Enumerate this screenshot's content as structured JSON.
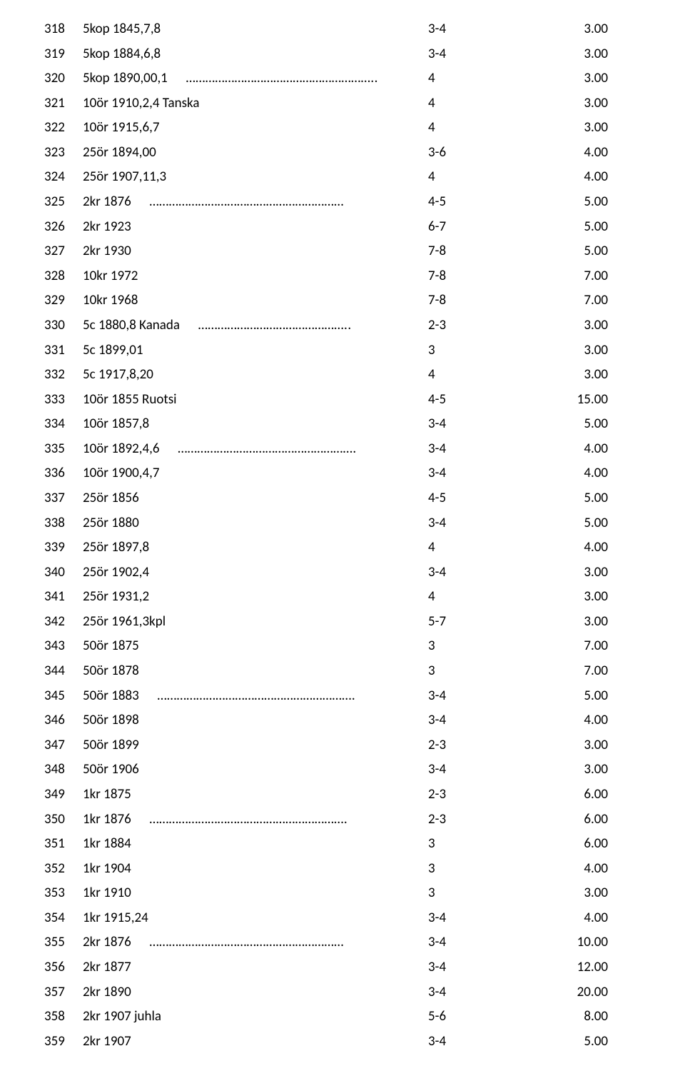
{
  "rows": [
    {
      "num": "318",
      "desc": "5kop 1845,7,8",
      "dots": "",
      "grade": "3-4",
      "price": "3.00"
    },
    {
      "num": "319",
      "desc": "5kop 1884,6,8",
      "dots": "",
      "grade": "3-4",
      "price": "3.00"
    },
    {
      "num": "320",
      "desc": "5kop 1890,00,1",
      "dots": "…………………………………………………..",
      "grade": "4",
      "price": "3.00"
    },
    {
      "num": "321",
      "desc": "10ör 1910,2,4 Tanska",
      "dots": "",
      "grade": "4",
      "price": "3.00"
    },
    {
      "num": "322",
      "desc": "10ör 1915,6,7",
      "dots": "",
      "grade": "4",
      "price": "3.00"
    },
    {
      "num": "323",
      "desc": "25ör 1894,00",
      "dots": "",
      "grade": "3-6",
      "price": "4.00"
    },
    {
      "num": "324",
      "desc": "25ör 1907,11,3",
      "dots": "",
      "grade": "4",
      "price": "4.00"
    },
    {
      "num": "325",
      "desc": "2kr 1876",
      "dots": "……………………………………………………",
      "grade": "4-5",
      "price": "5.00"
    },
    {
      "num": "326",
      "desc": "2kr 1923",
      "dots": "",
      "grade": "6-7",
      "price": "5.00"
    },
    {
      "num": "327",
      "desc": "2kr 1930",
      "dots": "",
      "grade": "7-8",
      "price": "5.00"
    },
    {
      "num": "328",
      "desc": "10kr 1972",
      "dots": "",
      "grade": "7-8",
      "price": "7.00"
    },
    {
      "num": "329",
      "desc": "10kr 1968",
      "dots": "",
      "grade": "7-8",
      "price": "7.00"
    },
    {
      "num": "330",
      "desc": "5c 1880,8 Kanada",
      "dots": "………………………………………..",
      "grade": "2-3",
      "price": "3.00"
    },
    {
      "num": "331",
      "desc": "5c 1899,01",
      "dots": "",
      "grade": "3",
      "price": "3.00"
    },
    {
      "num": "332",
      "desc": "5c 1917,8,20",
      "dots": "",
      "grade": "4",
      "price": "3.00"
    },
    {
      "num": "333",
      "desc": "10ör 1855      Ruotsi",
      "dots": "",
      "grade": "4-5",
      "price": "15.00"
    },
    {
      "num": "334",
      "desc": "10ör 1857,8",
      "dots": "",
      "grade": "3-4",
      "price": "5.00"
    },
    {
      "num": "335",
      "desc": "10ör 1892,4,6",
      "dots": "……………………………………………….",
      "grade": "3-4",
      "price": "4.00"
    },
    {
      "num": "336",
      "desc": "10ör 1900,4,7",
      "dots": "",
      "grade": "3-4",
      "price": "4.00"
    },
    {
      "num": "337",
      "desc": "25ör 1856",
      "dots": "",
      "grade": "4-5",
      "price": "5.00"
    },
    {
      "num": "338",
      "desc": "25ör 1880",
      "dots": "",
      "grade": "3-4",
      "price": "5.00"
    },
    {
      "num": "339",
      "desc": "25ör 1897,8",
      "dots": "",
      "grade": "4",
      "price": "4.00"
    },
    {
      "num": "340",
      "desc": "25ör 1902,4",
      "dots": "",
      "grade": "3-4",
      "price": "3.00"
    },
    {
      "num": "341",
      "desc": "25ör 1931,2",
      "dots": "",
      "grade": "4",
      "price": "3.00"
    },
    {
      "num": "342",
      "desc": "25ör 1961,3kpl",
      "dots": "",
      "grade": "5-7",
      "price": "3.00"
    },
    {
      "num": "343",
      "desc": "50ör 1875",
      "dots": "",
      "grade": "3",
      "price": "7.00"
    },
    {
      "num": "344",
      "desc": "50ör 1878",
      "dots": "",
      "grade": "3",
      "price": "7.00"
    },
    {
      "num": "345",
      "desc": "50ör 1883",
      "dots": "…………………………………………………….",
      "grade": "3-4",
      "price": "5.00"
    },
    {
      "num": "346",
      "desc": "50ör 1898",
      "dots": "",
      "grade": "3-4",
      "price": "4.00"
    },
    {
      "num": "347",
      "desc": "50ör 1899",
      "dots": "",
      "grade": "2-3",
      "price": "3.00"
    },
    {
      "num": "348",
      "desc": "50ör 1906",
      "dots": "",
      "grade": "3-4",
      "price": "3.00"
    },
    {
      "num": "349",
      "desc": "1kr 1875",
      "dots": "",
      "grade": "2-3",
      "price": "6.00"
    },
    {
      "num": "350",
      "desc": "1kr 1876",
      "dots": "…………………………………………………….",
      "grade": "2-3",
      "price": "6.00"
    },
    {
      "num": "351",
      "desc": "1kr 1884",
      "dots": "",
      "grade": "3",
      "price": "6.00"
    },
    {
      "num": "352",
      "desc": "1kr 1904",
      "dots": "",
      "grade": "3",
      "price": "4.00"
    },
    {
      "num": "353",
      "desc": "1kr 1910",
      "dots": "",
      "grade": "3",
      "price": "3.00"
    },
    {
      "num": "354",
      "desc": "1kr 1915,24",
      "dots": "",
      "grade": "3-4",
      "price": "4.00"
    },
    {
      "num": "355",
      "desc": "2kr 1876",
      "dots": "……………………………………………………",
      "grade": "3-4",
      "price": "10.00"
    },
    {
      "num": "356",
      "desc": "2kr 1877",
      "dots": "",
      "grade": "3-4",
      "price": "12.00"
    },
    {
      "num": "357",
      "desc": "2kr 1890",
      "dots": "",
      "grade": "3-4",
      "price": "20.00"
    },
    {
      "num": "358",
      "desc": "2kr 1907 juhla",
      "dots": "",
      "grade": "5-6",
      "price": "8.00"
    },
    {
      "num": "359",
      "desc": "2kr 1907",
      "dots": "",
      "grade": "3-4",
      "price": "5.00"
    }
  ]
}
